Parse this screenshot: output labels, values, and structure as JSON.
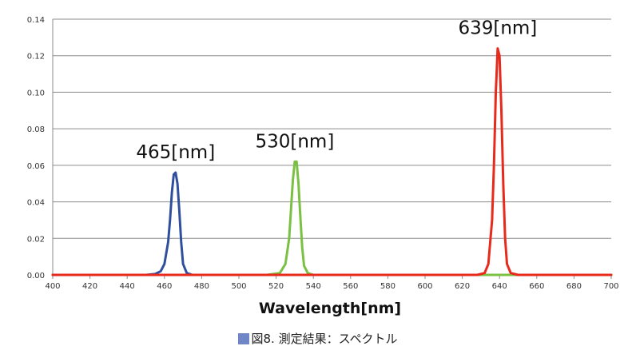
{
  "caption": {
    "marker_color": "#6f87c6",
    "text": "図8. 測定結果：スペクトル"
  },
  "chart_data": {
    "type": "line",
    "title": "",
    "xlabel": "Wavelength[nm]",
    "ylabel": "",
    "xlim": [
      400,
      700
    ],
    "ylim": [
      0,
      0.14
    ],
    "x_ticks": [
      "400",
      "420",
      "440",
      "460",
      "480",
      "500",
      "520",
      "540",
      "560",
      "580",
      "600",
      "620",
      "640",
      "660",
      "680",
      "700"
    ],
    "y_ticks": [
      "0.00",
      "0.02",
      "0.04",
      "0.06",
      "0.08",
      "0.10",
      "0.12",
      "0.14"
    ],
    "grid": "horizontal",
    "legend": "none",
    "series": [
      {
        "color": "#2f4f9e",
        "peak_label": "465[nm]",
        "x": [
          400,
          450,
          455,
          458,
          460,
          462,
          463,
          464,
          465,
          466,
          467,
          468,
          469,
          470,
          472,
          475,
          700
        ],
        "y": [
          0,
          0,
          0.0005,
          0.002,
          0.006,
          0.018,
          0.03,
          0.045,
          0.055,
          0.056,
          0.05,
          0.035,
          0.018,
          0.006,
          0.001,
          0,
          0
        ]
      },
      {
        "color": "#7ac143",
        "peak_label": "530[nm]",
        "x": [
          400,
          515,
          522,
          525,
          527,
          528,
          529,
          530,
          531,
          532,
          533,
          534,
          535,
          537,
          540,
          700
        ],
        "y": [
          0,
          0,
          0.001,
          0.006,
          0.02,
          0.036,
          0.052,
          0.062,
          0.062,
          0.05,
          0.032,
          0.015,
          0.005,
          0.001,
          0,
          0
        ]
      },
      {
        "color": "#e8291c",
        "peak_label": "639[nm]",
        "x": [
          400,
          628,
          632,
          634,
          636,
          637,
          638,
          639,
          640,
          641,
          642,
          643,
          644,
          646,
          650,
          700
        ],
        "y": [
          0,
          0,
          0.001,
          0.006,
          0.03,
          0.06,
          0.1,
          0.124,
          0.12,
          0.09,
          0.05,
          0.02,
          0.006,
          0.001,
          0,
          0
        ]
      }
    ]
  }
}
